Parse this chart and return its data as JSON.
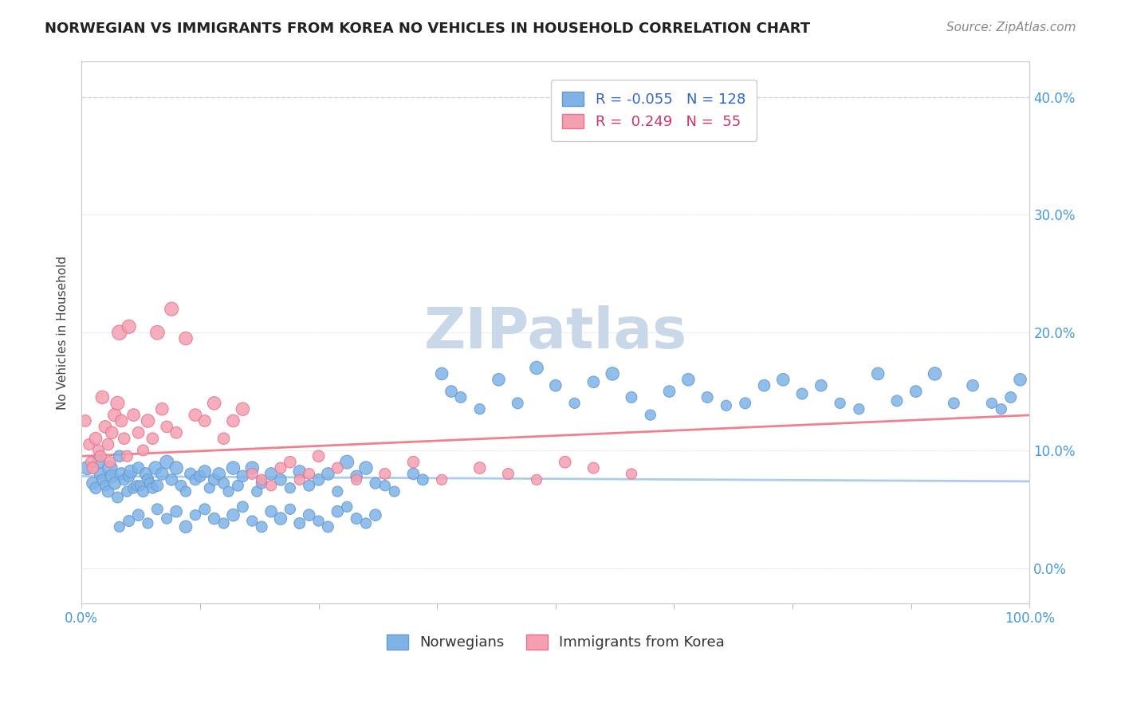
{
  "title": "NORWEGIAN VS IMMIGRANTS FROM KOREA NO VEHICLES IN HOUSEHOLD CORRELATION CHART",
  "source": "Source: ZipAtlas.com",
  "ylabel": "No Vehicles in Household",
  "xlabel": "",
  "xlim": [
    0.0,
    100.0
  ],
  "ylim": [
    -3.0,
    43.0
  ],
  "yticks": [
    0.0,
    10.0,
    20.0,
    30.0,
    40.0
  ],
  "ytick_labels": [
    "0.0%",
    "10.0%",
    "20.0%",
    "30.0%",
    "40.0%"
  ],
  "xtick_labels": [
    "0.0%",
    "100.0%"
  ],
  "legend_r1": "R = -0.055",
  "legend_n1": "N = 128",
  "legend_r2": "R =  0.249",
  "legend_n2": "N =  55",
  "color_blue": "#7fb3e8",
  "color_pink": "#f4a0b0",
  "color_blue_line": "#6699cc",
  "color_pink_line": "#e87090",
  "color_trend_blue": "#aaccee",
  "color_trend_pink": "#f08090",
  "watermark_text": "ZIPatlas",
  "watermark_color": "#c8d8e8",
  "watermark_fontsize": 52,
  "title_fontsize": 13,
  "source_fontsize": 11,
  "axis_label_fontsize": 11,
  "tick_label_fontsize": 12,
  "legend_fontsize": 13,
  "norwegians_x": [
    0.6,
    1.2,
    1.5,
    1.8,
    2.0,
    2.2,
    2.5,
    2.8,
    3.0,
    3.2,
    3.5,
    3.8,
    4.0,
    4.2,
    4.5,
    4.8,
    5.0,
    5.2,
    5.5,
    5.8,
    6.0,
    6.2,
    6.5,
    6.8,
    7.0,
    7.2,
    7.5,
    7.8,
    8.0,
    8.5,
    9.0,
    9.5,
    10.0,
    10.5,
    11.0,
    11.5,
    12.0,
    12.5,
    13.0,
    13.5,
    14.0,
    14.5,
    15.0,
    15.5,
    16.0,
    16.5,
    17.0,
    18.0,
    18.5,
    19.0,
    20.0,
    21.0,
    22.0,
    23.0,
    24.0,
    25.0,
    26.0,
    27.0,
    28.0,
    29.0,
    30.0,
    31.0,
    32.0,
    33.0,
    35.0,
    36.0,
    38.0,
    39.0,
    40.0,
    42.0,
    44.0,
    46.0,
    48.0,
    50.0,
    52.0,
    54.0,
    56.0,
    58.0,
    60.0,
    62.0,
    64.0,
    66.0,
    68.0,
    70.0,
    72.0,
    74.0,
    76.0,
    78.0,
    80.0,
    82.0,
    84.0,
    86.0,
    88.0,
    90.0,
    92.0,
    94.0,
    96.0,
    97.0,
    98.0,
    99.0,
    4.0,
    5.0,
    6.0,
    7.0,
    8.0,
    9.0,
    10.0,
    11.0,
    12.0,
    13.0,
    14.0,
    15.0,
    16.0,
    17.0,
    18.0,
    19.0,
    20.0,
    21.0,
    22.0,
    23.0,
    24.0,
    25.0,
    26.0,
    27.0,
    28.0,
    29.0,
    30.0,
    31.0
  ],
  "norwegians_y": [
    8.5,
    7.2,
    6.8,
    9.0,
    8.0,
    7.5,
    7.0,
    6.5,
    8.5,
    7.8,
    7.2,
    6.0,
    9.5,
    8.0,
    7.5,
    6.5,
    7.8,
    8.2,
    6.8,
    7.0,
    8.5,
    7.0,
    6.5,
    8.0,
    7.5,
    7.2,
    6.8,
    8.5,
    7.0,
    8.0,
    9.0,
    7.5,
    8.5,
    7.0,
    6.5,
    8.0,
    7.5,
    7.8,
    8.2,
    6.8,
    7.5,
    8.0,
    7.2,
    6.5,
    8.5,
    7.0,
    7.8,
    8.5,
    6.5,
    7.2,
    8.0,
    7.5,
    6.8,
    8.2,
    7.0,
    7.5,
    8.0,
    6.5,
    9.0,
    7.8,
    8.5,
    7.2,
    7.0,
    6.5,
    8.0,
    7.5,
    16.5,
    15.0,
    14.5,
    13.5,
    16.0,
    14.0,
    17.0,
    15.5,
    14.0,
    15.8,
    16.5,
    14.5,
    13.0,
    15.0,
    16.0,
    14.5,
    13.8,
    14.0,
    15.5,
    16.0,
    14.8,
    15.5,
    14.0,
    13.5,
    16.5,
    14.2,
    15.0,
    16.5,
    14.0,
    15.5,
    14.0,
    13.5,
    14.5,
    16.0,
    3.5,
    4.0,
    4.5,
    3.8,
    5.0,
    4.2,
    4.8,
    3.5,
    4.5,
    5.0,
    4.2,
    3.8,
    4.5,
    5.2,
    4.0,
    3.5,
    4.8,
    4.2,
    5.0,
    3.8,
    4.5,
    4.0,
    3.5,
    4.8,
    5.2,
    4.2,
    3.8,
    4.5
  ],
  "norwegians_size": [
    30,
    25,
    22,
    28,
    24,
    20,
    18,
    22,
    35,
    28,
    25,
    20,
    22,
    25,
    20,
    18,
    22,
    28,
    20,
    18,
    22,
    18,
    20,
    25,
    22,
    18,
    20,
    28,
    22,
    25,
    30,
    22,
    28,
    20,
    18,
    22,
    20,
    22,
    25,
    18,
    22,
    25,
    20,
    18,
    28,
    20,
    22,
    28,
    18,
    20,
    25,
    22,
    18,
    25,
    20,
    22,
    25,
    18,
    30,
    22,
    28,
    20,
    18,
    18,
    22,
    20,
    25,
    22,
    20,
    18,
    25,
    20,
    28,
    22,
    18,
    22,
    28,
    20,
    18,
    22,
    25,
    20,
    18,
    20,
    22,
    25,
    20,
    22,
    18,
    18,
    25,
    20,
    22,
    28,
    20,
    22,
    18,
    18,
    20,
    25,
    18,
    20,
    22,
    18,
    20,
    18,
    22,
    25,
    18,
    20,
    22,
    18,
    25,
    20,
    18,
    20,
    22,
    25,
    18,
    20,
    22,
    18,
    20,
    22,
    18,
    20,
    18,
    22
  ],
  "korea_x": [
    0.4,
    0.8,
    1.0,
    1.2,
    1.5,
    1.8,
    2.0,
    2.2,
    2.5,
    2.8,
    3.0,
    3.2,
    3.5,
    3.8,
    4.0,
    4.2,
    4.5,
    4.8,
    5.0,
    5.5,
    6.0,
    6.5,
    7.0,
    7.5,
    8.0,
    8.5,
    9.0,
    9.5,
    10.0,
    11.0,
    12.0,
    13.0,
    14.0,
    15.0,
    16.0,
    17.0,
    18.0,
    19.0,
    20.0,
    21.0,
    22.0,
    23.0,
    24.0,
    25.0,
    27.0,
    29.0,
    32.0,
    35.0,
    38.0,
    42.0,
    45.0,
    48.0,
    51.0,
    54.0,
    58.0
  ],
  "korea_y": [
    12.5,
    10.5,
    9.0,
    8.5,
    11.0,
    10.0,
    9.5,
    14.5,
    12.0,
    10.5,
    9.0,
    11.5,
    13.0,
    14.0,
    20.0,
    12.5,
    11.0,
    9.5,
    20.5,
    13.0,
    11.5,
    10.0,
    12.5,
    11.0,
    20.0,
    13.5,
    12.0,
    22.0,
    11.5,
    19.5,
    13.0,
    12.5,
    14.0,
    11.0,
    12.5,
    13.5,
    8.0,
    7.5,
    7.0,
    8.5,
    9.0,
    7.5,
    8.0,
    9.5,
    8.5,
    7.5,
    8.0,
    9.0,
    7.5,
    8.5,
    8.0,
    7.5,
    9.0,
    8.5,
    8.0
  ],
  "korea_size": [
    22,
    20,
    18,
    22,
    25,
    20,
    22,
    28,
    25,
    22,
    20,
    25,
    28,
    30,
    35,
    25,
    22,
    20,
    30,
    25,
    22,
    20,
    28,
    22,
    32,
    25,
    22,
    30,
    22,
    28,
    25,
    22,
    28,
    22,
    25,
    28,
    20,
    18,
    18,
    20,
    22,
    18,
    20,
    22,
    20,
    18,
    20,
    22,
    18,
    22,
    20,
    18,
    22,
    20,
    18
  ]
}
